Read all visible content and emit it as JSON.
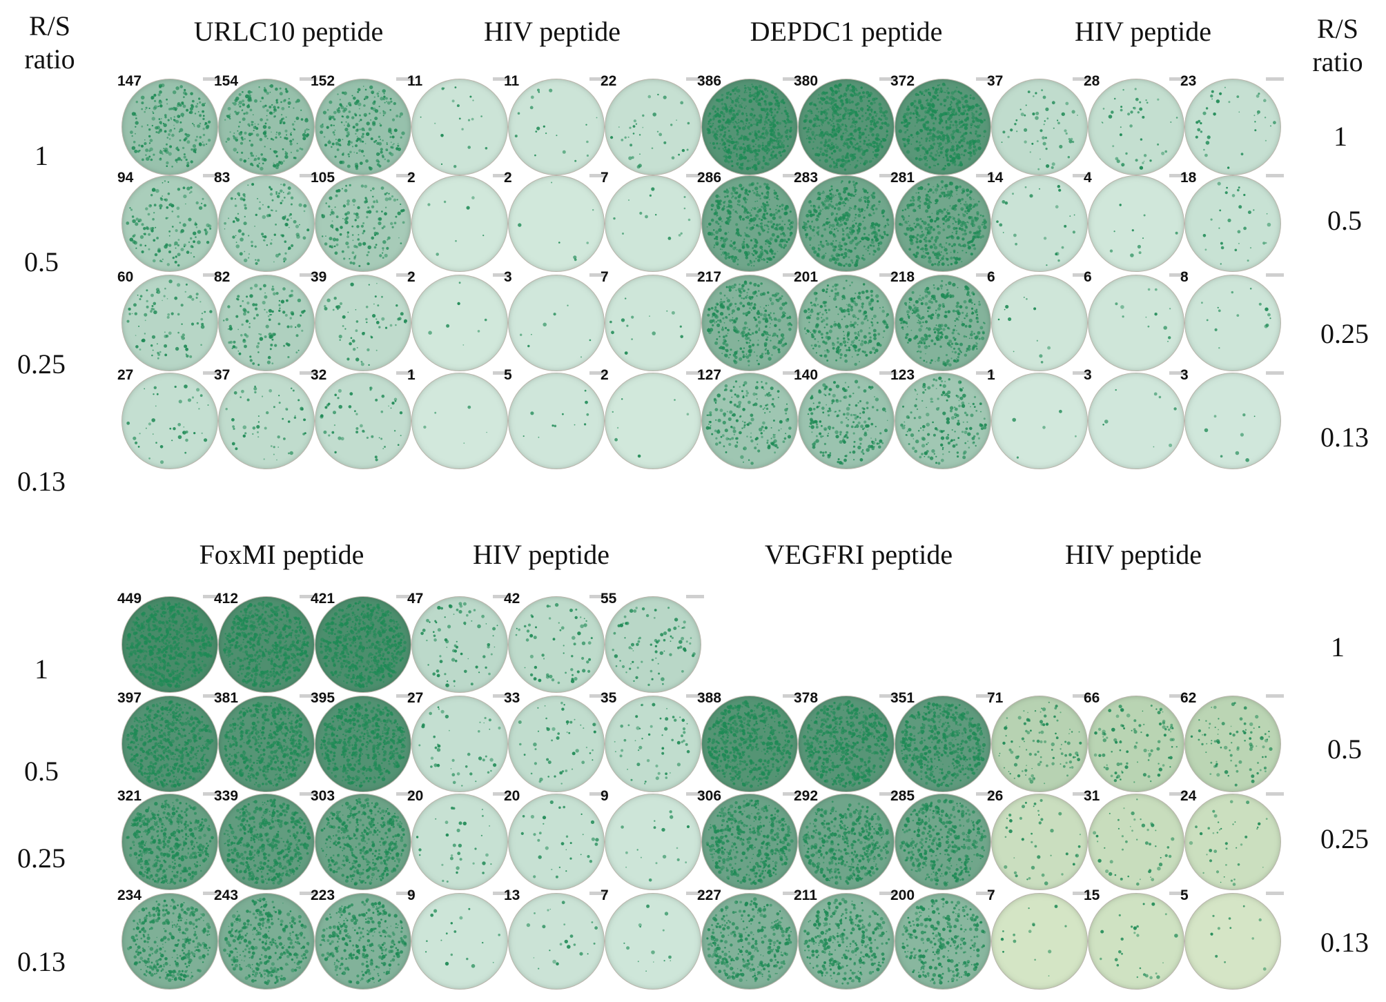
{
  "left_header": "R/S\nratio",
  "right_header": "R/S\nratio",
  "top_panel": {
    "groups": [
      "URLC10 peptide",
      "HIV peptide",
      "DEPDC1 peptide",
      "HIV peptide"
    ],
    "ratios_left": [
      "1",
      "0.5",
      "0.25",
      "0.13"
    ],
    "ratios_right": [
      "1",
      "0.5",
      "0.25",
      "0.13"
    ],
    "rows": [
      [
        "147",
        "154",
        "152",
        "11",
        "11",
        "22",
        "386",
        "380",
        "372",
        "37",
        "28",
        "23"
      ],
      [
        "94",
        "83",
        "105",
        "2",
        "2",
        "7",
        "286",
        "283",
        "281",
        "14",
        "4",
        "18"
      ],
      [
        "60",
        "82",
        "39",
        "2",
        "3",
        "7",
        "217",
        "201",
        "218",
        "6",
        "6",
        "8"
      ],
      [
        "27",
        "37",
        "32",
        "1",
        "5",
        "2",
        "127",
        "140",
        "123",
        "1",
        "3",
        "3"
      ]
    ]
  },
  "bottom_panel": {
    "groups": [
      "FoxMI peptide",
      "HIV peptide",
      "VEGFRI peptide",
      "HIV peptide"
    ],
    "ratios_left": [
      "1",
      "0.5",
      "0.25",
      "0.13"
    ],
    "ratios_right": [
      "1",
      "0.5",
      "0.25",
      "0.13"
    ],
    "rows": [
      [
        "449",
        "412",
        "421",
        "47",
        "42",
        "55",
        "",
        "",
        "",
        "",
        "",
        ""
      ],
      [
        "397",
        "381",
        "395",
        "27",
        "33",
        "35",
        "388",
        "378",
        "351",
        "71",
        "66",
        "62"
      ],
      [
        "321",
        "339",
        "303",
        "20",
        "20",
        "9",
        "306",
        "292",
        "285",
        "26",
        "31",
        "24"
      ],
      [
        "234",
        "243",
        "223",
        "9",
        "13",
        "7",
        "227",
        "211",
        "200",
        "7",
        "15",
        "5"
      ]
    ]
  },
  "colors": {
    "spot": "#1e8a55",
    "well_light": "#d3e9dd",
    "well_dark": "#2f7a55",
    "well_yellowish": "#d9e8c9"
  }
}
